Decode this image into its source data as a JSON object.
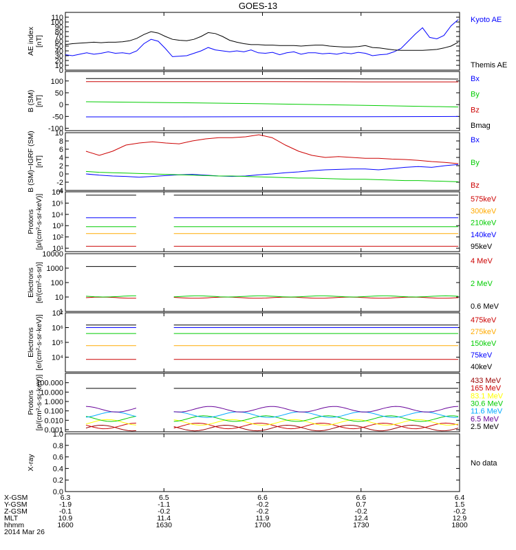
{
  "title": "GOES-13",
  "colors": {
    "black": "#000000",
    "blue": "#0000ff",
    "red": "#cc0000",
    "green": "#00cc00",
    "orange": "#ffaa00",
    "cyan": "#00aaff",
    "yellow": "#ffff00",
    "darkred": "#990000",
    "purple": "#660099"
  },
  "x_axis": {
    "row_labels": [
      "X-GSM",
      "Y-GSM",
      "Z-GSM",
      "MLT",
      "hhmm",
      "2014 Mar 26"
    ],
    "tick_columns": [
      [
        "6.3",
        "-1.9",
        "-0.1",
        "10.9",
        "1600"
      ],
      [
        "6.5",
        "-1.1",
        "-0.2",
        "11.4",
        "1630"
      ],
      [
        "6.6",
        "-0.2",
        "-0.2",
        "11.9",
        "1700"
      ],
      [
        "6.6",
        "0.7",
        "-0.2",
        "12.4",
        "1730"
      ],
      [
        "6.4",
        "1.5",
        "-0.2",
        "12.9",
        "1800"
      ]
    ]
  },
  "chart_data": [
    {
      "type": "line",
      "ylabel": "AE index\n[nT]",
      "ylim": [
        0,
        120
      ],
      "yticks": [
        "0",
        "10",
        "20",
        "30",
        "40",
        "50",
        "60",
        "70",
        "80",
        "90",
        "100",
        "110"
      ],
      "x": "hhmm 1600-1800",
      "series": [
        {
          "name": "Kyoto AE",
          "color": "#0000ff",
          "values": [
            32,
            30,
            33,
            36,
            33,
            35,
            38,
            35,
            36,
            34,
            40,
            55,
            64,
            60,
            45,
            28,
            29,
            30,
            35,
            40,
            47,
            42,
            40,
            38,
            40,
            38,
            42,
            36,
            35,
            37,
            32,
            36,
            38,
            33,
            36,
            36,
            34,
            35,
            33,
            36,
            34,
            37,
            35,
            30,
            32,
            33,
            38,
            45,
            60,
            75,
            88,
            68,
            65,
            72,
            92,
            105
          ]
        },
        {
          "name": "Themis AE",
          "color": "#000000",
          "values": [
            53,
            55,
            56,
            57,
            58,
            57,
            58,
            58,
            59,
            61,
            66,
            74,
            80,
            77,
            70,
            64,
            62,
            61,
            64,
            70,
            78,
            76,
            70,
            62,
            58,
            55,
            53,
            53,
            52,
            52,
            51,
            51,
            51,
            50,
            51,
            52,
            52,
            50,
            49,
            48,
            48,
            49,
            51,
            47,
            46,
            44,
            42,
            41,
            41,
            41,
            41,
            42,
            43,
            46,
            50,
            58
          ]
        }
      ],
      "legend": [
        "Kyoto AE",
        "Themis AE"
      ]
    },
    {
      "type": "line",
      "ylabel": "B (SM)\n[nT]",
      "ylim": [
        -110,
        140
      ],
      "yticks": [
        "-100",
        "-50",
        "0",
        "50",
        "100"
      ],
      "series": [
        {
          "name": "Bx",
          "color": "#0000ff",
          "values": [
            -52,
            -52,
            -51,
            -51,
            -50
          ]
        },
        {
          "name": "By",
          "color": "#00cc00",
          "values": [
            12,
            8,
            3,
            -3,
            -10
          ]
        },
        {
          "name": "Bz",
          "color": "#cc0000",
          "values": [
            97,
            97,
            97,
            96,
            96
          ]
        },
        {
          "name": "Bmag",
          "color": "#000000",
          "values": [
            110,
            110,
            110,
            109,
            108
          ]
        }
      ],
      "legend": [
        "Bx",
        "By",
        "Bz",
        "Bmag"
      ]
    },
    {
      "type": "line",
      "ylabel": "B (SM)−IGRF (SM)\n[nT]",
      "ylim": [
        -4,
        10
      ],
      "yticks": [
        "-4",
        "-2",
        "0",
        "2",
        "4",
        "6",
        "8",
        "10"
      ],
      "series": [
        {
          "name": "Bx",
          "color": "#0000ff",
          "values": [
            0.0,
            -0.3,
            -0.5,
            -0.6,
            -0.8,
            -0.6,
            -0.4,
            -0.2,
            -0.1,
            -0.3,
            -0.5,
            -0.6,
            -0.5,
            -0.2,
            0.0,
            0.3,
            0.5,
            0.8,
            1.0,
            1.1,
            1.2,
            1.2,
            1.0,
            1.3,
            1.6,
            1.8,
            1.6,
            2.0,
            2.3
          ]
        },
        {
          "name": "By",
          "color": "#00cc00",
          "values": [
            0.6,
            0.4,
            0.3,
            0.2,
            0.1,
            0.0,
            -0.1,
            -0.2,
            -0.3,
            -0.4,
            -0.5,
            -0.5,
            -0.6,
            -0.7,
            -0.8,
            -0.9,
            -1.0,
            -1.0,
            -1.1,
            -1.2,
            -1.3,
            -1.3,
            -1.4,
            -1.5,
            -1.6,
            -1.6,
            -1.7,
            -1.8,
            -1.9
          ]
        },
        {
          "name": "Bz",
          "color": "#cc0000",
          "values": [
            5.5,
            4.5,
            5.5,
            7.0,
            7.5,
            7.8,
            7.5,
            7.3,
            8.0,
            8.5,
            8.8,
            8.8,
            9.0,
            9.5,
            8.8,
            7.0,
            5.5,
            4.5,
            4.0,
            4.2,
            4.0,
            3.8,
            3.8,
            3.6,
            3.5,
            3.3,
            3.0,
            2.8,
            2.5
          ]
        }
      ],
      "legend": [
        "Bx",
        "By",
        "Bz"
      ]
    },
    {
      "type": "line",
      "yscale": "log",
      "ylabel": "Protons\n[p/(cm²-s-sr-keV)]",
      "ylim": [
        5,
        1000000
      ],
      "yticks": [
        "10¹",
        "10²",
        "10³",
        "10⁴",
        "10⁵",
        "10⁶"
      ],
      "gap": [
        "1626",
        "1634"
      ],
      "series": [
        {
          "name": "575keV",
          "color": "#cc0000",
          "values": [
            15,
            15,
            15,
            15,
            15
          ]
        },
        {
          "name": "300keV",
          "color": "#ffaa00",
          "values": [
            200,
            200,
            200,
            200,
            200
          ]
        },
        {
          "name": "210keV",
          "color": "#00cc00",
          "values": [
            800,
            800,
            800,
            800,
            800
          ]
        },
        {
          "name": "140keV",
          "color": "#0000ff",
          "values": [
            5000,
            5000,
            5000,
            5000,
            5000
          ]
        },
        {
          "name": "95keV",
          "color": "#000000",
          "values": [
            500000,
            500000,
            500000,
            500000,
            500000
          ]
        }
      ],
      "legend": [
        "575keV",
        "300keV",
        "210keV",
        "140keV",
        "95keV"
      ]
    },
    {
      "type": "line",
      "yscale": "log",
      "ylabel": "Electrons\n[e/(cm²-s-sr)]",
      "ylim": [
        1,
        10000
      ],
      "yticks": [
        "1",
        "10",
        "100",
        "1000",
        "10000"
      ],
      "gap": [
        "1626",
        "1634"
      ],
      "series": [
        {
          "name": "4 MeV",
          "color": "#cc0000",
          "values": [
            9,
            9,
            9,
            9,
            9
          ]
        },
        {
          "name": "2 MeV",
          "color": "#00cc00",
          "values": [
            11,
            11,
            11,
            11,
            11
          ]
        },
        {
          "name": "0.6 MeV",
          "color": "#000000",
          "values": [
            1300,
            1300,
            1300,
            1300,
            1300
          ]
        }
      ],
      "legend": [
        "4 MeV",
        "2 MeV",
        "0.6 MeV"
      ]
    },
    {
      "type": "line",
      "yscale": "log",
      "ylabel": "Electrons\n[e/(cm²-s-sr-keV)]",
      "ylim": [
        1000,
        10000000
      ],
      "yticks": [
        "10⁴",
        "10⁵",
        "10⁶",
        "10⁷"
      ],
      "gap": [
        "1626",
        "1634"
      ],
      "series": [
        {
          "name": "475keV",
          "color": "#cc0000",
          "values": [
            7000,
            7000,
            7000,
            7000,
            7000
          ]
        },
        {
          "name": "275keV",
          "color": "#ffaa00",
          "values": [
            60000,
            60000,
            60000,
            60000,
            60000
          ]
        },
        {
          "name": "150keV",
          "color": "#00cc00",
          "values": [
            400000,
            400000,
            400000,
            400000,
            400000
          ]
        },
        {
          "name": "75keV",
          "color": "#0000ff",
          "values": [
            1000000,
            1000000,
            1000000,
            1000000,
            1000000
          ]
        },
        {
          "name": "40keV",
          "color": "#000000",
          "values": [
            1500000,
            1500000,
            1500000,
            1500000,
            1500000
          ]
        }
      ],
      "legend": [
        "475keV",
        "275keV",
        "150keV",
        "75keV",
        "40keV"
      ]
    },
    {
      "type": "line",
      "yscale": "log",
      "ylabel": "Protons\n[p/(cm²-s-sr-keV)]",
      "ylim": [
        0.0006,
        1000
      ],
      "yticks": [
        "0.001",
        "0.010",
        "0.100",
        "1.000",
        "10.000",
        "100.000"
      ],
      "gap": [
        "1626",
        "1634"
      ],
      "series": [
        {
          "name": "433 MeV",
          "color": "#990000",
          "values": [
            0.0015,
            0.0015,
            0.0015,
            0.0015,
            0.0015
          ]
        },
        {
          "name": "165 MeV",
          "color": "#cc0000",
          "values": [
            0.0025,
            0.0025,
            0.0025,
            0.0025,
            0.0025
          ]
        },
        {
          "name": "83.1 MeV",
          "color": "#ffff00",
          "values": [
            0.006,
            0.006,
            0.006,
            0.006,
            0.006
          ]
        },
        {
          "name": "30.6 MeV",
          "color": "#00cc00",
          "values": [
            0.015,
            0.015,
            0.015,
            0.015,
            0.015
          ]
        },
        {
          "name": "11.6 MeV",
          "color": "#00aaff",
          "values": [
            0.04,
            0.04,
            0.04,
            0.04,
            0.04
          ]
        },
        {
          "name": "6.5 MeV",
          "color": "#660099",
          "values": [
            0.15,
            0.15,
            0.15,
            0.15,
            0.15
          ]
        },
        {
          "name": "2.5 MeV",
          "color": "#000000",
          "values": [
            25,
            25,
            25,
            25,
            25
          ]
        }
      ],
      "legend": [
        "433 MeV",
        "165 MeV",
        "83.1 MeV",
        "30.6 MeV",
        "11.6 MeV",
        "6.5 MeV",
        "2.5 MeV"
      ]
    },
    {
      "type": "line",
      "ylabel": "X-ray",
      "ylim": [
        0,
        1.0
      ],
      "yticks": [
        "0.0",
        "0.2",
        "0.4",
        "0.6",
        "0.8",
        "1.0"
      ],
      "series": [],
      "note": "No data"
    }
  ]
}
